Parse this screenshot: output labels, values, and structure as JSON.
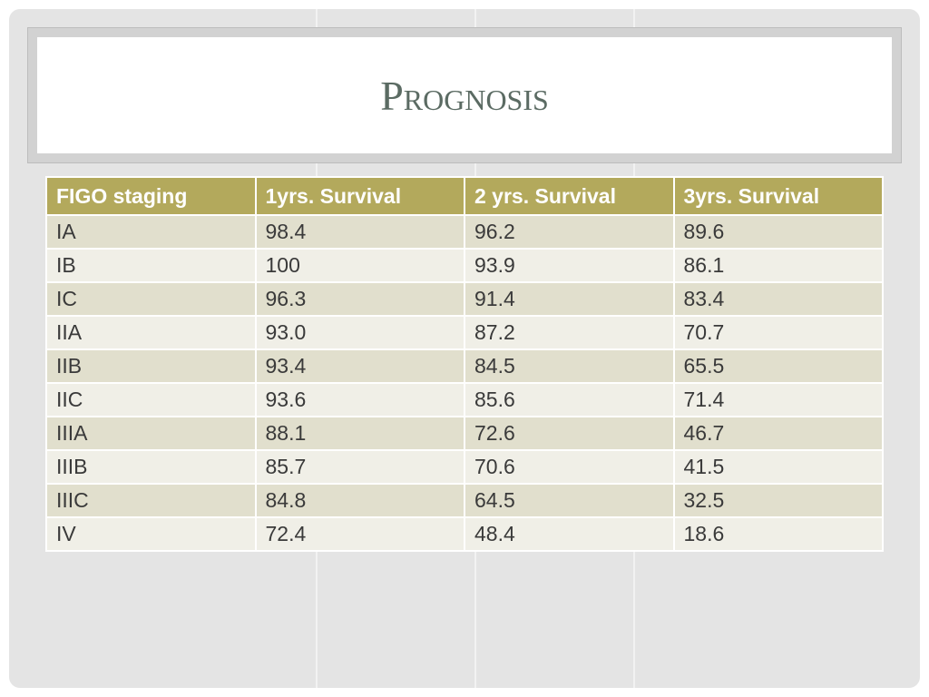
{
  "slide": {
    "title": "Prognosis"
  },
  "table": {
    "headers": [
      "FIGO staging",
      "1yrs. Survival",
      "2 yrs. Survival",
      "3yrs. Survival"
    ],
    "rows": [
      [
        "IA",
        "98.4",
        "96.2",
        "89.6"
      ],
      [
        "IB",
        "100",
        "93.9",
        "86.1"
      ],
      [
        "IC",
        "96.3",
        "91.4",
        "83.4"
      ],
      [
        "IIA",
        "93.0",
        "87.2",
        "70.7"
      ],
      [
        "IIB",
        "93.4",
        "84.5",
        "65.5"
      ],
      [
        "IIC",
        "93.6",
        "85.6",
        "71.4"
      ],
      [
        "IIIA",
        "88.1",
        "72.6",
        "46.7"
      ],
      [
        "IIIB",
        "85.7",
        "70.6",
        "41.5"
      ],
      [
        "IIIC",
        "84.8",
        "64.5",
        "32.5"
      ],
      [
        "IV",
        "72.4",
        "48.4",
        "18.6"
      ]
    ]
  },
  "colors": {
    "header_bg": "#b3a95c",
    "row_odd": "#e1dfcd",
    "row_even": "#f0efe7",
    "title_color": "#5b6b63"
  }
}
